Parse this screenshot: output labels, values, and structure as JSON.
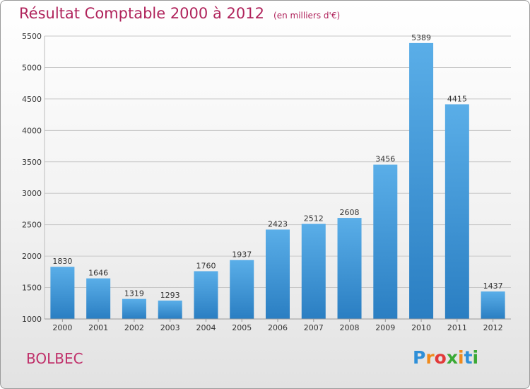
{
  "title": "Résultat Comptable 2000 à 2012",
  "unit_label": "(en milliers d'€)",
  "commune": "BOLBEC",
  "logo": {
    "letters": [
      "P",
      "r",
      "o",
      "x",
      "i",
      "t",
      "i"
    ],
    "colors": [
      "#2e8fd8",
      "#f08a1c",
      "#e23a3a",
      "#3aa935",
      "#f08a1c",
      "#2e8fd8",
      "#3aa935"
    ]
  },
  "colors": {
    "title": "#b0245c",
    "bar_light": "#5aaee8",
    "bar_dark": "#2a7ec2",
    "grid": "#c8c8c8"
  },
  "chart_data": {
    "type": "bar",
    "categories": [
      "2000",
      "2001",
      "2002",
      "2003",
      "2004",
      "2005",
      "2006",
      "2007",
      "2008",
      "2009",
      "2010",
      "2011",
      "2012"
    ],
    "values": [
      1830,
      1646,
      1319,
      1293,
      1760,
      1937,
      2423,
      2512,
      2608,
      3456,
      5389,
      4415,
      1437
    ],
    "ylim": [
      1000,
      5500
    ],
    "yticks": [
      1000,
      1500,
      2000,
      2500,
      3000,
      3500,
      4000,
      4500,
      5000,
      5500
    ],
    "grid": true
  }
}
